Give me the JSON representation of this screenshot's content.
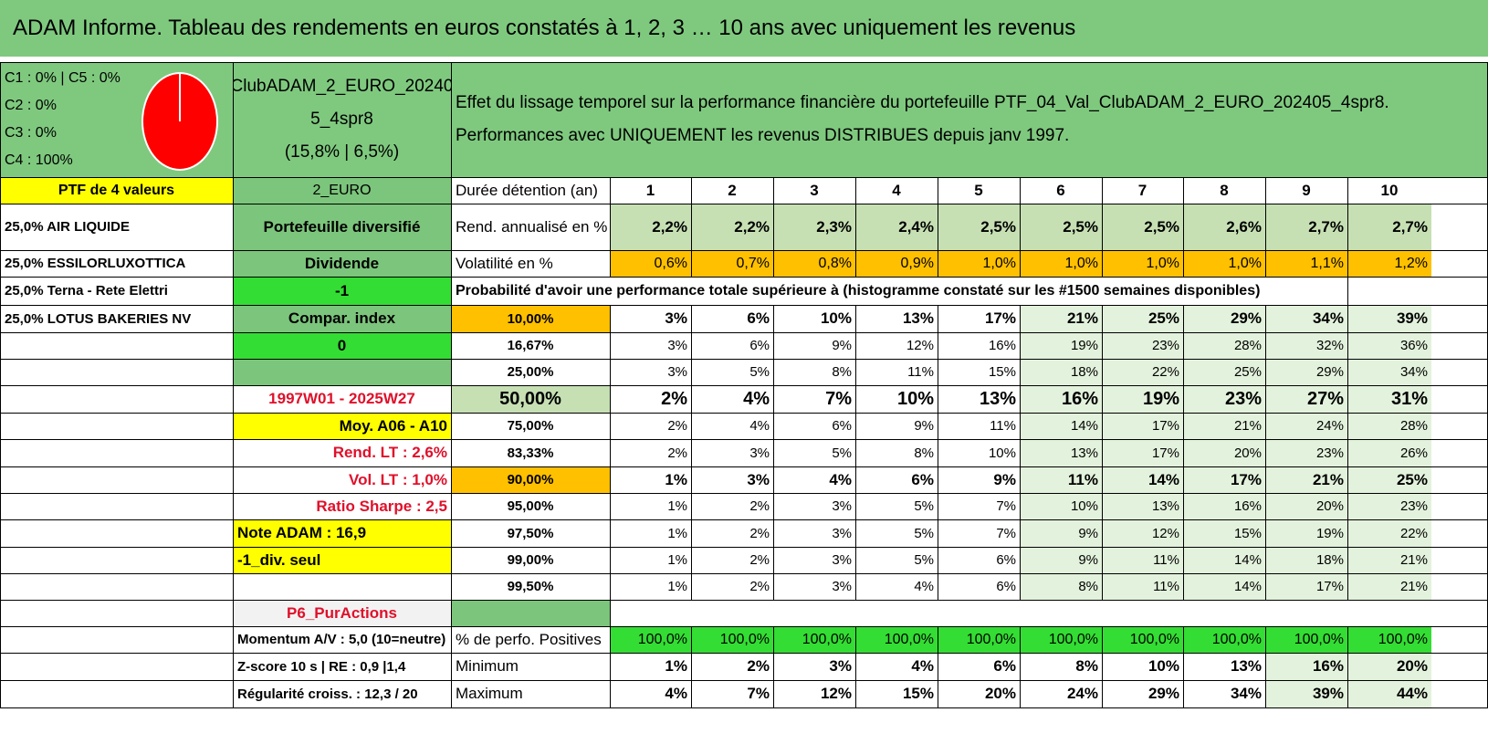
{
  "title": "ADAM Informe. Tableau des rendements en euros constatés à 1, 2, 3 … 10 ans avec uniquement les revenus",
  "colors": {
    "green_header": "#7fc97f",
    "mid_green": "#7cc57c",
    "yellow": "#ffff00",
    "bright_green": "#33dd33",
    "orange": "#ffc000",
    "light_green_cell": "#c6e0b4",
    "pale_green_cell": "#e3f2dc",
    "grey_cell": "#f2f2f2",
    "red_text": "#e0102a",
    "pie_red": "#ff0000"
  },
  "allocation": {
    "lines": [
      "C1 : 0% | C5 : 0%",
      "C2 : 0%",
      "C3 : 0%",
      "C4 : 100%"
    ],
    "pie_share_c4": 1.0
  },
  "portfolio": {
    "name_line1": "ClubADAM_2_EURO_20240",
    "name_line2": "5_4spr8",
    "stats": "(15,8% | 6,5%)"
  },
  "description": {
    "line1": "Effet du lissage temporel sur la performance financière du portefeuille PTF_04_Val_ClubADAM_2_EURO_202405_4spr8.",
    "line2": "Performances avec UNIQUEMENT les revenus DISTRIBUES depuis janv 1997."
  },
  "left_col": {
    "header": "PTF de 4 valeurs",
    "holdings": [
      "25,0% AIR LIQUIDE",
      "25,0% ESSILORLUXOTTICA",
      "25,0% Terna - Rete Elettri",
      "25,0% LOTUS BAKERIES NV"
    ]
  },
  "info_col": {
    "header": "2_EURO",
    "type": "Portefeuille diversifié",
    "kind": "Dividende",
    "value_neg1": "-1",
    "compar_label": "Compar. index",
    "compar_value": "0",
    "period": "1997W01 - 2025W27",
    "moy": "Moy. A06 - A10",
    "rend_lt": "Rend. LT : 2,6%",
    "vol_lt": "Vol. LT : 1,0%",
    "sharpe": "Ratio Sharpe : 2,5",
    "note": "Note ADAM : 16,9",
    "div_seul": "-1_div. seul",
    "category": "P6_PurActions",
    "momentum": "Momentum A/V : 5,0 (10=neutre)",
    "zscore": "Z-score 10 s | RE : 0,9 |1,4",
    "regularite": "Régularité croiss. : 12,3 / 20"
  },
  "table": {
    "duration_label": "Durée détention (an)",
    "years": [
      "1",
      "2",
      "3",
      "4",
      "5",
      "6",
      "7",
      "8",
      "9",
      "10"
    ],
    "rend_label": "Rend. annualisé en %",
    "rend": [
      "2,2%",
      "2,2%",
      "2,3%",
      "2,4%",
      "2,5%",
      "2,5%",
      "2,5%",
      "2,6%",
      "2,7%",
      "2,7%"
    ],
    "vol_label": "Volatilité en %",
    "vol": [
      "0,6%",
      "0,7%",
      "0,8%",
      "0,9%",
      "1,0%",
      "1,0%",
      "1,0%",
      "1,0%",
      "1,1%",
      "1,2%"
    ],
    "proba_title": "Probabilité d'avoir une performance totale supérieure à (histogramme constaté sur les #1500 semaines disponibles)",
    "proba_rows": [
      {
        "label": "10,00%",
        "values": [
          "3%",
          "6%",
          "10%",
          "13%",
          "17%",
          "21%",
          "25%",
          "29%",
          "34%",
          "39%"
        ]
      },
      {
        "label": "16,67%",
        "values": [
          "3%",
          "6%",
          "9%",
          "12%",
          "16%",
          "19%",
          "23%",
          "28%",
          "32%",
          "36%"
        ]
      },
      {
        "label": "25,00%",
        "values": [
          "3%",
          "5%",
          "8%",
          "11%",
          "15%",
          "18%",
          "22%",
          "25%",
          "29%",
          "34%"
        ]
      },
      {
        "label": "50,00%",
        "values": [
          "2%",
          "4%",
          "7%",
          "10%",
          "13%",
          "16%",
          "19%",
          "23%",
          "27%",
          "31%"
        ]
      },
      {
        "label": "75,00%",
        "values": [
          "2%",
          "4%",
          "6%",
          "9%",
          "11%",
          "14%",
          "17%",
          "21%",
          "24%",
          "28%"
        ]
      },
      {
        "label": "83,33%",
        "values": [
          "2%",
          "3%",
          "5%",
          "8%",
          "10%",
          "13%",
          "17%",
          "20%",
          "23%",
          "26%"
        ]
      },
      {
        "label": "90,00%",
        "values": [
          "1%",
          "3%",
          "4%",
          "6%",
          "9%",
          "11%",
          "14%",
          "17%",
          "21%",
          "25%"
        ]
      },
      {
        "label": "95,00%",
        "values": [
          "1%",
          "2%",
          "3%",
          "5%",
          "7%",
          "10%",
          "13%",
          "16%",
          "20%",
          "23%"
        ]
      },
      {
        "label": "97,50%",
        "values": [
          "1%",
          "2%",
          "3%",
          "5%",
          "7%",
          "9%",
          "12%",
          "15%",
          "19%",
          "22%"
        ]
      },
      {
        "label": "99,00%",
        "values": [
          "1%",
          "2%",
          "3%",
          "5%",
          "6%",
          "9%",
          "11%",
          "14%",
          "18%",
          "21%"
        ]
      },
      {
        "label": "99,50%",
        "values": [
          "1%",
          "2%",
          "3%",
          "4%",
          "6%",
          "8%",
          "11%",
          "14%",
          "17%",
          "21%"
        ]
      }
    ],
    "pos_label": "% de perfo. Positives",
    "pos": [
      "100,0%",
      "100,0%",
      "100,0%",
      "100,0%",
      "100,0%",
      "100,0%",
      "100,0%",
      "100,0%",
      "100,0%",
      "100,0%"
    ],
    "min_label": "Minimum",
    "min": [
      "1%",
      "2%",
      "3%",
      "4%",
      "6%",
      "8%",
      "10%",
      "13%",
      "16%",
      "20%"
    ],
    "max_label": "Maximum",
    "max": [
      "4%",
      "7%",
      "12%",
      "15%",
      "20%",
      "24%",
      "29%",
      "34%",
      "39%",
      "44%"
    ]
  }
}
